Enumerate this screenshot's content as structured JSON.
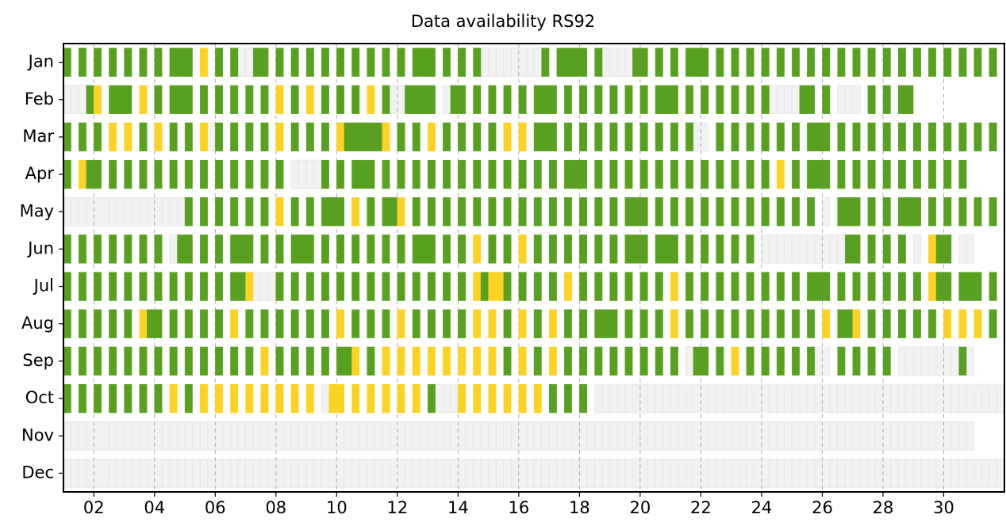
{
  "chart_data": {
    "type": "timeline",
    "title": "Data availability RS92",
    "categories": [
      "Jan",
      "Feb",
      "Mar",
      "Apr",
      "May",
      "Jun",
      "Jul",
      "Aug",
      "Sep",
      "Oct",
      "Nov",
      "Dec"
    ],
    "xlim": [
      1,
      32
    ],
    "x_step": 0.25,
    "xticks": [
      {
        "value": 2,
        "label": "02"
      },
      {
        "value": 4,
        "label": "04"
      },
      {
        "value": 6,
        "label": "06"
      },
      {
        "value": 8,
        "label": "08"
      },
      10,
      12,
      14,
      16,
      18,
      20,
      22,
      24,
      26,
      28,
      30
    ],
    "grid": true,
    "colors": [
      "#58a01f",
      "#fdd323",
      "#f2f2f2"
    ],
    "values": [
      [
        1,
        0,
        1,
        0,
        1,
        0,
        1,
        0,
        1,
        0,
        1,
        0,
        1,
        0,
        1,
        1,
        1,
        0,
        2,
        0,
        1,
        0,
        1,
        3,
        3,
        1,
        1,
        0,
        1,
        0,
        1,
        0,
        1,
        0,
        1,
        0,
        1,
        0,
        1,
        0,
        1,
        0,
        1,
        0,
        1,
        0,
        1,
        1,
        1,
        0,
        1,
        0,
        1,
        0,
        1,
        3,
        3,
        3,
        3,
        3,
        3,
        3,
        3,
        1,
        0,
        1,
        1,
        1,
        1,
        0,
        1,
        3,
        3,
        3,
        3,
        1,
        1,
        0,
        1,
        0,
        1,
        0,
        1,
        1,
        1,
        0,
        1,
        0,
        1,
        0,
        1,
        0,
        1,
        0,
        1,
        0,
        1,
        0,
        1,
        0,
        1,
        0,
        1,
        0,
        1,
        0,
        1,
        0,
        1,
        0,
        1,
        0,
        1,
        0,
        1,
        0,
        1,
        0,
        1,
        0,
        1,
        0,
        1,
        0
      ],
      [
        3,
        3,
        3,
        1,
        2,
        0,
        1,
        1,
        1,
        0,
        2,
        0,
        1,
        0,
        1,
        1,
        1,
        0,
        1,
        0,
        1,
        0,
        1,
        0,
        1,
        0,
        1,
        0,
        2,
        0,
        1,
        0,
        2,
        0,
        1,
        0,
        1,
        0,
        1,
        0,
        2,
        0,
        1,
        3,
        3,
        1,
        1,
        1,
        1,
        0,
        3,
        1,
        1,
        0,
        1,
        0,
        1,
        0,
        1,
        0,
        1,
        0,
        1,
        1,
        1,
        0,
        1,
        0,
        1,
        0,
        1,
        0,
        1,
        0,
        1,
        0,
        1,
        0,
        1,
        1,
        1,
        0,
        1,
        0,
        1,
        0,
        1,
        0,
        1,
        0,
        1,
        0,
        1,
        3,
        3,
        3,
        3,
        1,
        1,
        0,
        1,
        0,
        3,
        3,
        3,
        0,
        1,
        0,
        1,
        0,
        1,
        1
      ],
      [
        1,
        0,
        1,
        0,
        1,
        0,
        2,
        0,
        2,
        0,
        1,
        0,
        2,
        0,
        1,
        0,
        1,
        0,
        2,
        3,
        1,
        0,
        1,
        0,
        1,
        0,
        1,
        0,
        2,
        0,
        1,
        0,
        1,
        0,
        1,
        0,
        2,
        1,
        1,
        1,
        1,
        1,
        2,
        0,
        1,
        0,
        1,
        0,
        2,
        0,
        1,
        0,
        1,
        0,
        1,
        0,
        1,
        0,
        2,
        0,
        2,
        0,
        1,
        1,
        1,
        0,
        1,
        0,
        1,
        0,
        1,
        0,
        1,
        0,
        1,
        0,
        1,
        0,
        1,
        0,
        1,
        0,
        1,
        3,
        3,
        0,
        1,
        0,
        1,
        0,
        1,
        0,
        1,
        0,
        1,
        0,
        1,
        0,
        1,
        1,
        1,
        0,
        1,
        0,
        1,
        0,
        1,
        0,
        1,
        0,
        1,
        0,
        1,
        0,
        1,
        0,
        1,
        0,
        1,
        0,
        1,
        0,
        1,
        0
      ],
      [
        1,
        0,
        2,
        1,
        1,
        0,
        1,
        0,
        1,
        0,
        1,
        0,
        1,
        0,
        1,
        0,
        1,
        0,
        1,
        0,
        1,
        0,
        1,
        0,
        1,
        0,
        1,
        0,
        1,
        0,
        3,
        3,
        3,
        3,
        1,
        0,
        1,
        0,
        1,
        1,
        1,
        0,
        1,
        0,
        1,
        0,
        1,
        0,
        1,
        0,
        1,
        0,
        1,
        0,
        1,
        0,
        1,
        0,
        1,
        0,
        1,
        0,
        1,
        0,
        1,
        0,
        1,
        1,
        1,
        0,
        1,
        0,
        1,
        0,
        1,
        0,
        1,
        0,
        1,
        0,
        1,
        0,
        1,
        0,
        1,
        0,
        1,
        0,
        1,
        0,
        1,
        0,
        1,
        0,
        2,
        0,
        1,
        0,
        1,
        1,
        1,
        0,
        1,
        0,
        1,
        0,
        1,
        0,
        1,
        0,
        1,
        0,
        1,
        0,
        1,
        0,
        1,
        0,
        1,
        0
      ],
      [
        3,
        3,
        3,
        3,
        3,
        3,
        3,
        3,
        3,
        3,
        3,
        3,
        3,
        3,
        3,
        3,
        1,
        0,
        1,
        0,
        1,
        0,
        1,
        0,
        1,
        0,
        1,
        0,
        2,
        0,
        1,
        0,
        1,
        0,
        1,
        1,
        1,
        0,
        2,
        0,
        1,
        0,
        1,
        1,
        2,
        0,
        1,
        0,
        1,
        0,
        1,
        0,
        1,
        0,
        1,
        0,
        1,
        0,
        1,
        0,
        1,
        0,
        1,
        0,
        1,
        0,
        1,
        0,
        1,
        0,
        1,
        0,
        1,
        0,
        1,
        1,
        1,
        0,
        1,
        0,
        1,
        0,
        1,
        0,
        1,
        0,
        1,
        0,
        1,
        0,
        1,
        0,
        1,
        0,
        1,
        0,
        1,
        0,
        1,
        0,
        3,
        0,
        1,
        1,
        1,
        0,
        1,
        0,
        1,
        0,
        1,
        1,
        1,
        0,
        1,
        0,
        1,
        0,
        1,
        0,
        1,
        0,
        1,
        0
      ],
      [
        1,
        0,
        1,
        0,
        1,
        0,
        1,
        0,
        1,
        0,
        1,
        0,
        1,
        0,
        3,
        1,
        1,
        0,
        1,
        0,
        1,
        0,
        1,
        1,
        1,
        0,
        1,
        0,
        1,
        0,
        1,
        1,
        1,
        0,
        1,
        0,
        1,
        0,
        1,
        0,
        1,
        0,
        1,
        0,
        1,
        0,
        1,
        1,
        1,
        0,
        1,
        0,
        1,
        0,
        2,
        0,
        1,
        0,
        1,
        0,
        2,
        0,
        1,
        0,
        1,
        0,
        1,
        0,
        1,
        0,
        1,
        0,
        1,
        0,
        1,
        1,
        1,
        0,
        1,
        1,
        1,
        0,
        1,
        0,
        1,
        0,
        1,
        0,
        1,
        0,
        1,
        0,
        3,
        3,
        3,
        3,
        3,
        3,
        3,
        3,
        3,
        3,
        3,
        1,
        1,
        0,
        1,
        0,
        1,
        0,
        1,
        0,
        3,
        0,
        2,
        1,
        1,
        0,
        3,
        3
      ],
      [
        1,
        0,
        1,
        0,
        1,
        0,
        1,
        0,
        1,
        0,
        1,
        0,
        1,
        0,
        1,
        0,
        1,
        0,
        1,
        0,
        1,
        0,
        1,
        1,
        2,
        3,
        3,
        3,
        1,
        0,
        1,
        0,
        1,
        0,
        1,
        0,
        1,
        0,
        1,
        0,
        1,
        0,
        1,
        0,
        1,
        0,
        1,
        0,
        1,
        0,
        1,
        0,
        1,
        0,
        2,
        1,
        2,
        2,
        1,
        0,
        1,
        0,
        1,
        0,
        1,
        0,
        2,
        0,
        1,
        0,
        1,
        0,
        1,
        0,
        1,
        0,
        1,
        0,
        1,
        0,
        2,
        0,
        1,
        0,
        1,
        0,
        1,
        0,
        1,
        0,
        1,
        0,
        1,
        0,
        1,
        0,
        1,
        0,
        1,
        1,
        1,
        0,
        1,
        0,
        1,
        0,
        1,
        0,
        1,
        0,
        1,
        0,
        1,
        0,
        2,
        1,
        1,
        0,
        1,
        1,
        1,
        0,
        1,
        0
      ],
      [
        1,
        0,
        1,
        0,
        1,
        0,
        1,
        0,
        1,
        0,
        2,
        1,
        1,
        0,
        1,
        0,
        1,
        0,
        1,
        0,
        1,
        0,
        2,
        0,
        1,
        0,
        1,
        0,
        1,
        0,
        1,
        0,
        1,
        0,
        1,
        0,
        2,
        0,
        1,
        0,
        1,
        0,
        1,
        0,
        2,
        0,
        1,
        0,
        1,
        0,
        1,
        0,
        1,
        0,
        2,
        0,
        2,
        0,
        1,
        0,
        2,
        0,
        1,
        0,
        2,
        0,
        1,
        0,
        1,
        0,
        1,
        1,
        1,
        0,
        1,
        0,
        1,
        0,
        1,
        0,
        2,
        0,
        1,
        0,
        1,
        0,
        1,
        0,
        1,
        0,
        1,
        0,
        1,
        0,
        1,
        0,
        1,
        0,
        1,
        0,
        2,
        0,
        1,
        1,
        2,
        0,
        1,
        0,
        1,
        0,
        1,
        0,
        1,
        0,
        1,
        0,
        2,
        0,
        2,
        0,
        2,
        0,
        1,
        0
      ],
      [
        1,
        0,
        1,
        0,
        1,
        0,
        1,
        0,
        1,
        0,
        1,
        0,
        1,
        0,
        1,
        0,
        1,
        0,
        1,
        0,
        1,
        0,
        1,
        0,
        1,
        0,
        2,
        0,
        1,
        0,
        1,
        0,
        1,
        0,
        1,
        0,
        1,
        1,
        2,
        0,
        1,
        0,
        2,
        0,
        2,
        0,
        2,
        0,
        2,
        0,
        2,
        0,
        2,
        0,
        2,
        0,
        2,
        0,
        1,
        0,
        2,
        0,
        1,
        0,
        2,
        0,
        1,
        0,
        1,
        0,
        1,
        0,
        1,
        0,
        1,
        0,
        1,
        0,
        1,
        0,
        1,
        0,
        3,
        1,
        1,
        0,
        1,
        0,
        2,
        0,
        1,
        0,
        1,
        0,
        1,
        0,
        1,
        0,
        1,
        3,
        3,
        0,
        1,
        0,
        1,
        0,
        1,
        0,
        1,
        0,
        3,
        3,
        3,
        3,
        3,
        3,
        3,
        3,
        1,
        3
      ],
      [
        1,
        0,
        1,
        0,
        1,
        0,
        1,
        0,
        1,
        0,
        1,
        0,
        1,
        0,
        2,
        0,
        1,
        0,
        2,
        0,
        2,
        0,
        2,
        0,
        2,
        0,
        2,
        0,
        2,
        0,
        2,
        0,
        2,
        0,
        3,
        2,
        2,
        0,
        2,
        0,
        2,
        0,
        2,
        0,
        2,
        0,
        2,
        0,
        1,
        3,
        3,
        3,
        2,
        0,
        2,
        0,
        2,
        0,
        2,
        0,
        2,
        0,
        2,
        0,
        1,
        0,
        1,
        0,
        1,
        0,
        3,
        3,
        3,
        3,
        3,
        3,
        3,
        3,
        3,
        3,
        3,
        3,
        3,
        3,
        3,
        3,
        3,
        3,
        3,
        3,
        3,
        3,
        3,
        3,
        3,
        3,
        3,
        3,
        3,
        3,
        3,
        3,
        3,
        3,
        3,
        3,
        3,
        3,
        3,
        3,
        3,
        3,
        3,
        3,
        3,
        3,
        3,
        3,
        3,
        3,
        3,
        3,
        3,
        3
      ],
      [
        3,
        3,
        3,
        3,
        3,
        3,
        3,
        3,
        3,
        3,
        3,
        3,
        3,
        3,
        3,
        3,
        3,
        3,
        3,
        3,
        3,
        3,
        3,
        3,
        3,
        3,
        3,
        3,
        3,
        3,
        3,
        3,
        3,
        3,
        3,
        3,
        3,
        3,
        3,
        3,
        3,
        3,
        3,
        3,
        3,
        3,
        3,
        3,
        3,
        3,
        3,
        3,
        3,
        3,
        3,
        3,
        3,
        3,
        3,
        3,
        3,
        3,
        3,
        3,
        3,
        3,
        3,
        3,
        3,
        3,
        3,
        3,
        3,
        3,
        3,
        3,
        3,
        3,
        3,
        3,
        3,
        3,
        3,
        3,
        3,
        3,
        3,
        3,
        3,
        3,
        3,
        3,
        3,
        3,
        3,
        3,
        3,
        3,
        3,
        3,
        3,
        3,
        3,
        3,
        3,
        3,
        3,
        3,
        3,
        3,
        3,
        3,
        3,
        3,
        3,
        3,
        3,
        3,
        3,
        3
      ],
      [
        3,
        3,
        3,
        3,
        3,
        3,
        3,
        3,
        3,
        3,
        3,
        3,
        3,
        3,
        3,
        3,
        3,
        3,
        3,
        3,
        3,
        3,
        3,
        3,
        3,
        3,
        3,
        3,
        3,
        3,
        3,
        3,
        3,
        3,
        3,
        3,
        3,
        3,
        3,
        3,
        3,
        3,
        3,
        3,
        3,
        3,
        3,
        3,
        3,
        3,
        3,
        3,
        3,
        3,
        3,
        3,
        3,
        3,
        3,
        3,
        3,
        3,
        3,
        3,
        3,
        3,
        3,
        3,
        3,
        3,
        3,
        3,
        3,
        3,
        3,
        3,
        3,
        3,
        3,
        3,
        3,
        3,
        3,
        3,
        3,
        3,
        3,
        3,
        3,
        3,
        3,
        3,
        3,
        3,
        3,
        3,
        3,
        3,
        3,
        3,
        3,
        3,
        3,
        3,
        3,
        3,
        3,
        3,
        3,
        3,
        3,
        3,
        3,
        3,
        3,
        3,
        3,
        3,
        3,
        3,
        3,
        3,
        3,
        3
      ]
    ]
  }
}
